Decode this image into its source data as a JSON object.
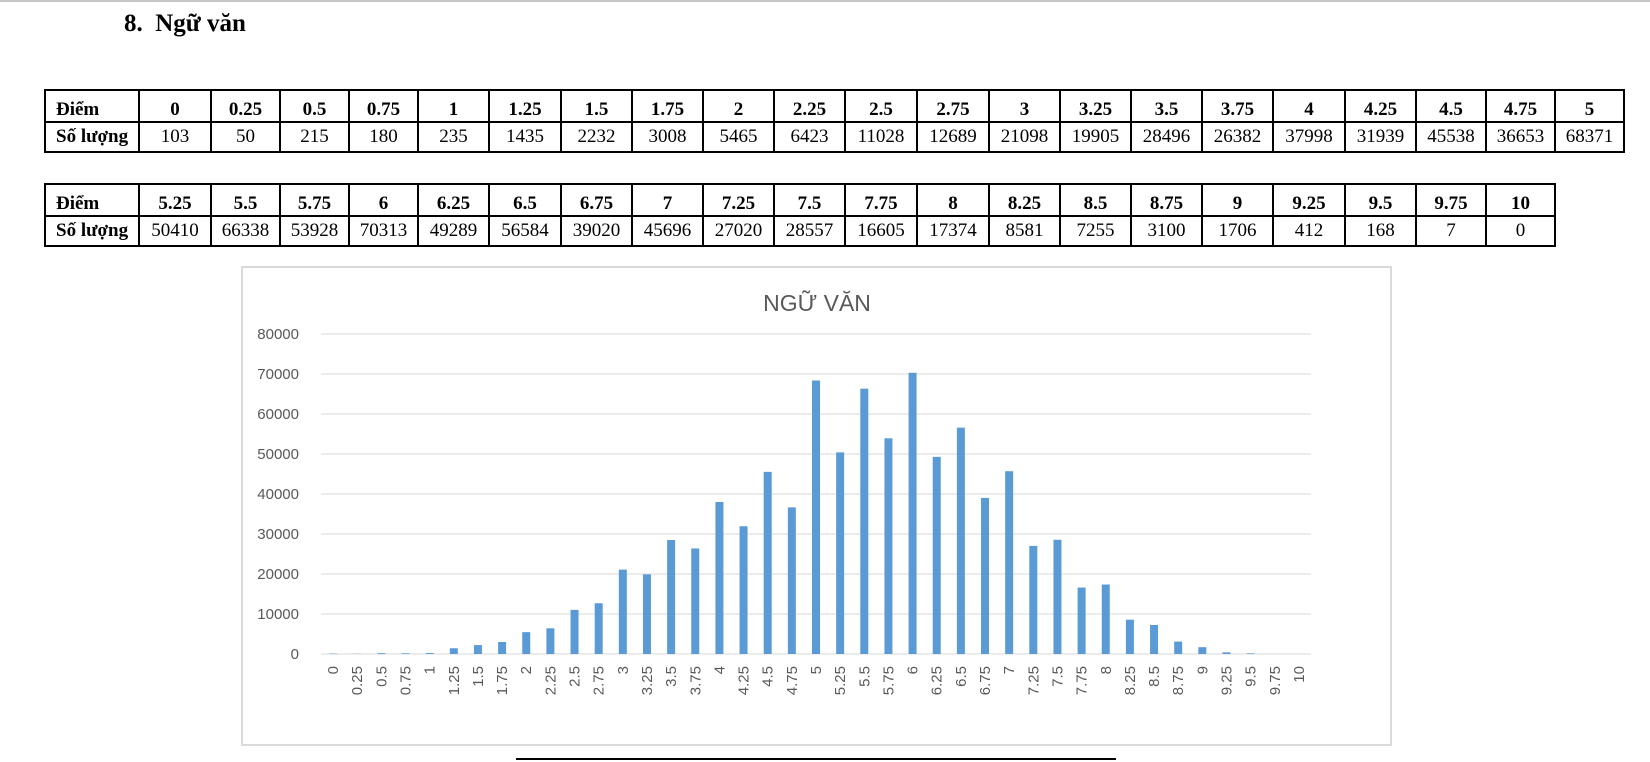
{
  "section": {
    "number": "8.",
    "title": "Ngữ văn"
  },
  "tables": [
    {
      "row_labels": {
        "points": "Điểm",
        "count": "Số lượng"
      },
      "points": [
        "0",
        "0.25",
        "0.5",
        "0.75",
        "1",
        "1.25",
        "1.5",
        "1.75",
        "2",
        "2.25",
        "2.5",
        "2.75",
        "3",
        "3.25",
        "3.5",
        "3.75",
        "4",
        "4.25",
        "4.5",
        "4.75",
        "5"
      ],
      "counts": [
        "103",
        "50",
        "215",
        "180",
        "235",
        "1435",
        "2232",
        "3008",
        "5465",
        "6423",
        "11028",
        "12689",
        "21098",
        "19905",
        "28496",
        "26382",
        "37998",
        "31939",
        "45538",
        "36653",
        "68371"
      ]
    },
    {
      "row_labels": {
        "points": "Điểm",
        "count": "Số lượng"
      },
      "points": [
        "5.25",
        "5.5",
        "5.75",
        "6",
        "6.25",
        "6.5",
        "6.75",
        "7",
        "7.25",
        "7.5",
        "7.75",
        "8",
        "8.25",
        "8.5",
        "8.75",
        "9",
        "9.25",
        "9.5",
        "9.75",
        "10"
      ],
      "counts": [
        "50410",
        "66338",
        "53928",
        "70313",
        "49289",
        "56584",
        "39020",
        "45696",
        "27020",
        "28557",
        "16605",
        "17374",
        "8581",
        "7255",
        "3100",
        "1706",
        "412",
        "168",
        "7",
        "0"
      ]
    }
  ],
  "chart_data": {
    "type": "bar",
    "title": "NGỮ VĂN",
    "xlabel": "",
    "ylabel": "",
    "ylim": [
      0,
      80000
    ],
    "yticks": [
      "0",
      "10000",
      "20000",
      "30000",
      "40000",
      "50000",
      "60000",
      "70000",
      "80000"
    ],
    "grid": true,
    "legend": "none",
    "bar_color": "#5b9bd5",
    "grid_color": "#d9d9d9",
    "categories": [
      "0",
      "0.25",
      "0.5",
      "0.75",
      "1",
      "1.25",
      "1.5",
      "1.75",
      "2",
      "2.25",
      "2.5",
      "2.75",
      "3",
      "3.25",
      "3.5",
      "3.75",
      "4",
      "4.25",
      "4.5",
      "4.75",
      "5",
      "5.25",
      "5.5",
      "5.75",
      "6",
      "6.25",
      "6.5",
      "6.75",
      "7",
      "7.25",
      "7.5",
      "7.75",
      "8",
      "8.25",
      "8.5",
      "8.75",
      "9",
      "9.25",
      "9.5",
      "9.75",
      "10"
    ],
    "values": [
      103,
      50,
      215,
      180,
      235,
      1435,
      2232,
      3008,
      5465,
      6423,
      11028,
      12689,
      21098,
      19905,
      28496,
      26382,
      37998,
      31939,
      45538,
      36653,
      68371,
      50410,
      66338,
      53928,
      70313,
      49289,
      56584,
      39020,
      45696,
      27020,
      28557,
      16605,
      17374,
      8581,
      7255,
      3100,
      1706,
      412,
      168,
      7,
      0
    ]
  }
}
